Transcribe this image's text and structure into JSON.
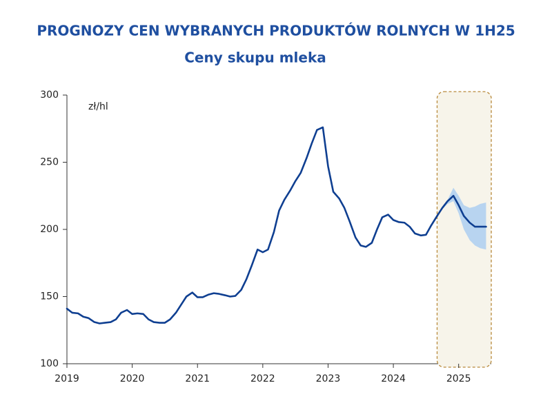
{
  "chart_data": {
    "type": "line",
    "title": "PROGNOZY CEN WYBRANYCH PRODUKTÓW ROLNYCH W 1H25",
    "subtitle": "Ceny skupu mleka",
    "unit_label": "zł/hl",
    "x": [
      2019,
      2019.08,
      2019.17,
      2019.25,
      2019.33,
      2019.42,
      2019.5,
      2019.58,
      2019.67,
      2019.75,
      2019.83,
      2019.92,
      2020,
      2020.08,
      2020.17,
      2020.25,
      2020.33,
      2020.42,
      2020.5,
      2020.58,
      2020.67,
      2020.75,
      2020.83,
      2020.92,
      2021,
      2021.08,
      2021.17,
      2021.25,
      2021.33,
      2021.42,
      2021.5,
      2021.58,
      2021.67,
      2021.75,
      2021.83,
      2021.92,
      2022,
      2022.08,
      2022.17,
      2022.25,
      2022.33,
      2022.42,
      2022.5,
      2022.58,
      2022.67,
      2022.75,
      2022.83,
      2022.92,
      2023,
      2023.08,
      2023.17,
      2023.25,
      2023.33,
      2023.42,
      2023.5,
      2023.58,
      2023.67,
      2023.75,
      2023.83,
      2023.92,
      2024,
      2024.08,
      2024.17,
      2024.25,
      2024.33,
      2024.42,
      2024.5,
      2024.58,
      2024.67,
      2024.75,
      2024.83,
      2024.92,
      2025,
      2025.08,
      2025.17,
      2025.25,
      2025.33,
      2025.42
    ],
    "series": [
      {
        "color": "#0f3f91",
        "values": [
          141,
          138,
          137.5,
          135,
          134,
          131,
          130,
          130.5,
          131,
          133,
          138,
          140,
          137,
          137.5,
          137,
          133,
          131,
          130.5,
          130.5,
          133,
          138,
          144,
          150,
          153,
          149.5,
          149.5,
          151.5,
          152.5,
          152,
          151,
          150,
          150.5,
          155,
          163,
          173,
          185,
          183,
          185,
          198,
          214,
          222,
          229,
          236,
          242,
          253,
          264,
          274,
          276,
          247,
          228,
          223,
          216,
          206,
          194,
          188,
          187,
          190,
          200,
          209,
          211,
          207,
          205.5,
          205,
          202,
          197,
          195.5,
          196,
          203,
          210,
          216,
          221,
          225,
          218,
          210,
          205,
          202,
          202,
          202
        ]
      }
    ],
    "band": {
      "color": "#b8d4f0",
      "x": [
        2024.75,
        2024.83,
        2024.92,
        2025,
        2025.08,
        2025.17,
        2025.25,
        2025.33,
        2025.42
      ],
      "upper": [
        217,
        222,
        231,
        225,
        218,
        216,
        217,
        219,
        220
      ],
      "lower": [
        215,
        219,
        221,
        212,
        200,
        192,
        188,
        186,
        185
      ]
    },
    "forecast_span": [
      2024.67,
      2025.5
    ],
    "xlim": [
      2019,
      2025.5
    ],
    "xticks": [
      2019,
      2020,
      2021,
      2022,
      2023,
      2024,
      2025
    ],
    "ylim": [
      100,
      300
    ],
    "yticks": [
      100,
      150,
      200,
      250,
      300
    ]
  }
}
